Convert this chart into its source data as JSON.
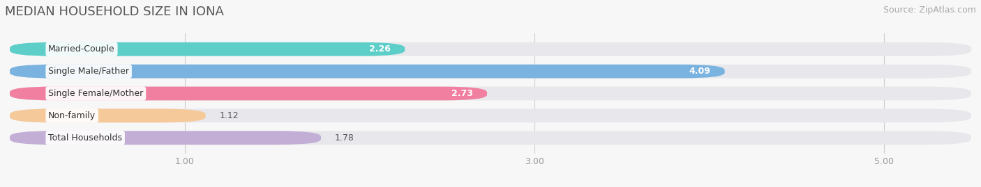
{
  "title": "MEDIAN HOUSEHOLD SIZE IN IONA",
  "source": "Source: ZipAtlas.com",
  "categories": [
    "Married-Couple",
    "Single Male/Father",
    "Single Female/Mother",
    "Non-family",
    "Total Households"
  ],
  "values": [
    2.26,
    4.09,
    2.73,
    1.12,
    1.78
  ],
  "bar_colors": [
    "#5ecec8",
    "#7ab3e0",
    "#f07fa0",
    "#f5c99a",
    "#c3aed6"
  ],
  "track_color": "#e8e8ec",
  "background_color": "#f7f7f7",
  "xlim_min": 0.0,
  "xlim_max": 5.5,
  "xticks": [
    1.0,
    3.0,
    5.0
  ],
  "title_fontsize": 13,
  "source_fontsize": 9,
  "label_fontsize": 9,
  "value_fontsize": 9
}
